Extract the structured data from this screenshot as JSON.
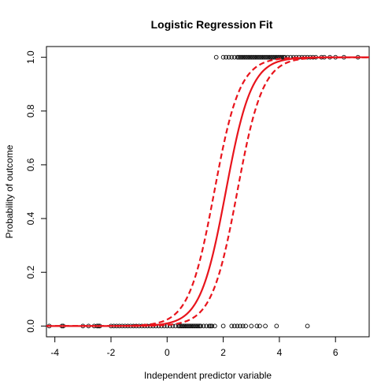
{
  "chart_data": {
    "type": "scatter",
    "title": "Logistic Regression Fit",
    "xlabel": "Independent predictor variable",
    "ylabel": "Probability of outcome",
    "xlim": [
      -4.3,
      7.2
    ],
    "ylim": [
      -0.04,
      1.04
    ],
    "grid": false,
    "x_ticks": [
      -4,
      -2,
      0,
      2,
      4,
      6
    ],
    "y_ticks": [
      0.0,
      0.2,
      0.4,
      0.6,
      0.8,
      1.0
    ],
    "y_tick_labels": [
      "0.0",
      "0.2",
      "0.4",
      "0.6",
      "0.8",
      "1.0"
    ],
    "curve_color": "#e8141c",
    "point_color": "#000000",
    "fit": {
      "intercept": -4.6,
      "slope": 2.2,
      "lower_band": {
        "intercept": -5.5,
        "slope": 2.2
      },
      "upper_band": {
        "intercept": -3.7,
        "slope": 2.2
      }
    },
    "points_y0": [
      -4.2,
      -3.75,
      -3.7,
      -3.0,
      -2.8,
      -2.6,
      -2.5,
      -2.45,
      -2.4,
      -2.0,
      -1.9,
      -1.8,
      -1.7,
      -1.6,
      -1.5,
      -1.4,
      -1.3,
      -1.2,
      -1.1,
      -1.0,
      -0.9,
      -0.8,
      -0.7,
      -0.6,
      -0.5,
      -0.4,
      -0.3,
      -0.2,
      -0.1,
      0.0,
      0.1,
      0.2,
      0.3,
      0.4,
      0.45,
      0.5,
      0.55,
      0.6,
      0.65,
      0.7,
      0.75,
      0.8,
      0.85,
      0.9,
      0.95,
      1.0,
      1.05,
      1.1,
      1.15,
      1.2,
      1.3,
      1.4,
      1.5,
      1.55,
      1.6,
      1.7,
      2.0,
      2.3,
      2.4,
      2.5,
      2.6,
      2.7,
      2.8,
      3.0,
      3.2,
      3.3,
      3.5,
      3.9,
      5.0
    ],
    "points_y1": [
      1.75,
      2.0,
      2.1,
      2.2,
      2.3,
      2.4,
      2.5,
      2.55,
      2.6,
      2.65,
      2.7,
      2.75,
      2.8,
      2.85,
      2.9,
      2.95,
      3.0,
      3.05,
      3.1,
      3.15,
      3.2,
      3.25,
      3.3,
      3.35,
      3.4,
      3.45,
      3.5,
      3.55,
      3.6,
      3.65,
      3.7,
      3.75,
      3.8,
      3.85,
      3.9,
      3.95,
      4.0,
      4.05,
      4.1,
      4.15,
      4.2,
      4.3,
      4.4,
      4.5,
      4.6,
      4.7,
      4.8,
      4.9,
      5.0,
      5.1,
      5.2,
      5.3,
      5.5,
      5.6,
      5.8,
      6.0,
      6.3,
      6.8
    ]
  }
}
